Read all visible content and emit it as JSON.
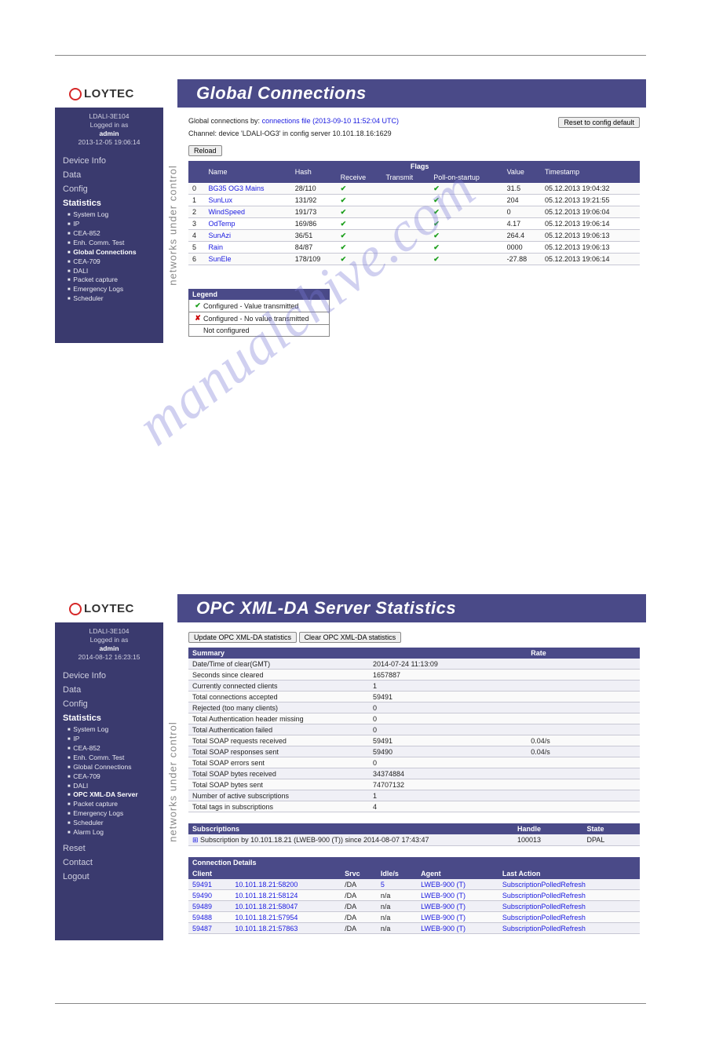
{
  "watermark": "manualchive.com",
  "screen1": {
    "title": "Global Connections",
    "logo_text": "LOYTEC",
    "sidebar": {
      "device": "LDALI-3E104",
      "logged_in_as_label": "Logged in as",
      "user": "admin",
      "datetime": "2013-12-05 19:06:14",
      "nav": [
        {
          "label": "Device Info",
          "active": false
        },
        {
          "label": "Data",
          "active": false
        },
        {
          "label": "Config",
          "active": false
        },
        {
          "label": "Statistics",
          "active": true
        }
      ],
      "subitems": [
        {
          "label": "System Log",
          "active": false
        },
        {
          "label": "IP",
          "active": false
        },
        {
          "label": "CEA-852",
          "active": false
        },
        {
          "label": "Enh. Comm. Test",
          "active": false
        },
        {
          "label": "Global Connections",
          "active": true
        },
        {
          "label": "CEA-709",
          "active": false
        },
        {
          "label": "DALI",
          "active": false
        },
        {
          "label": "Packet capture",
          "active": false
        },
        {
          "label": "Emergency Logs",
          "active": false
        },
        {
          "label": "Scheduler",
          "active": false
        }
      ]
    },
    "vlabel": "networks under control",
    "conn_by_label": "Global connections by:",
    "conn_by_value": "connections file (2013-09-10 11:52:04 UTC)",
    "channel_label": "Channel: device 'LDALI-OG3' in config server 10.101.18.16:1629",
    "reset_button": "Reset to config default",
    "reload_button": "Reload",
    "columns": {
      "idx": "",
      "name": "Name",
      "hash": "Hash",
      "flags_group": "Flags",
      "receive": "Receive",
      "transmit": "Transmit",
      "poll": "Poll-on-startup",
      "value": "Value",
      "timestamp": "Timestamp"
    },
    "rows": [
      {
        "idx": "0",
        "name": "BG35 OG3 Mains",
        "hash": "28/110",
        "rx": true,
        "tx": false,
        "poll": true,
        "value": "31.5",
        "ts": "05.12.2013 19:04:32"
      },
      {
        "idx": "1",
        "name": "SunLux",
        "hash": "131/92",
        "rx": true,
        "tx": false,
        "poll": true,
        "value": "204",
        "ts": "05.12.2013 19:21:55"
      },
      {
        "idx": "2",
        "name": "WindSpeed",
        "hash": "191/73",
        "rx": true,
        "tx": false,
        "poll": true,
        "value": "0",
        "ts": "05.12.2013 19:06:04"
      },
      {
        "idx": "3",
        "name": "OdTemp",
        "hash": "169/86",
        "rx": true,
        "tx": false,
        "poll": true,
        "value": "4.17",
        "ts": "05.12.2013 19:06:14"
      },
      {
        "idx": "4",
        "name": "SunAzi",
        "hash": "36/51",
        "rx": true,
        "tx": false,
        "poll": true,
        "value": "264.4",
        "ts": "05.12.2013 19:06:13"
      },
      {
        "idx": "5",
        "name": "Rain",
        "hash": "84/87",
        "rx": true,
        "tx": false,
        "poll": true,
        "value": "0000",
        "ts": "05.12.2013 19:06:13"
      },
      {
        "idx": "6",
        "name": "SunEle",
        "hash": "178/109",
        "rx": true,
        "tx": false,
        "poll": true,
        "value": "-27.88",
        "ts": "05.12.2013 19:06:14"
      }
    ],
    "legend": {
      "title": "Legend",
      "r1": "Configured - Value transmitted",
      "r2": "Configured - No value transmitted",
      "r3": "Not configured"
    }
  },
  "screen2": {
    "title": "OPC XML-DA Server Statistics",
    "logo_text": "LOYTEC",
    "sidebar": {
      "device": "LDALI-3E104",
      "logged_in_as_label": "Logged in as",
      "user": "admin",
      "datetime": "2014-08-12 16:23:15",
      "nav": [
        {
          "label": "Device Info",
          "active": false
        },
        {
          "label": "Data",
          "active": false
        },
        {
          "label": "Config",
          "active": false
        },
        {
          "label": "Statistics",
          "active": true
        }
      ],
      "subitems": [
        {
          "label": "System Log",
          "active": false
        },
        {
          "label": "IP",
          "active": false
        },
        {
          "label": "CEA-852",
          "active": false
        },
        {
          "label": "Enh. Comm. Test",
          "active": false
        },
        {
          "label": "Global Connections",
          "active": false
        },
        {
          "label": "CEA-709",
          "active": false
        },
        {
          "label": "DALI",
          "active": false
        },
        {
          "label": "OPC XML-DA Server",
          "active": true
        },
        {
          "label": "Packet capture",
          "active": false
        },
        {
          "label": "Emergency Logs",
          "active": false
        },
        {
          "label": "Scheduler",
          "active": false
        },
        {
          "label": "Alarm Log",
          "active": false
        }
      ],
      "nav2": [
        "Reset",
        "Contact",
        "Logout"
      ]
    },
    "vlabel": "networks under control",
    "update_button": "Update OPC XML-DA statistics",
    "clear_button": "Clear OPC XML-DA statistics",
    "summary_hdr": "Summary",
    "rate_hdr": "Rate",
    "summary": [
      {
        "k": "Date/Time of clear(GMT)",
        "v": "2014-07-24 11:13:09",
        "r": ""
      },
      {
        "k": "Seconds since cleared",
        "v": "1657887",
        "r": ""
      },
      {
        "k": "Currently connected clients",
        "v": "1",
        "r": ""
      },
      {
        "k": "Total connections accepted",
        "v": "59491",
        "r": ""
      },
      {
        "k": "Rejected (too many clients)",
        "v": "0",
        "r": ""
      },
      {
        "k": "Total Authentication header missing",
        "v": "0",
        "r": ""
      },
      {
        "k": "Total Authentication failed",
        "v": "0",
        "r": ""
      },
      {
        "k": "Total SOAP requests received",
        "v": "59491",
        "r": "0.04/s"
      },
      {
        "k": "Total SOAP responses sent",
        "v": "59490",
        "r": "0.04/s"
      },
      {
        "k": "Total SOAP errors sent",
        "v": "0",
        "r": ""
      },
      {
        "k": "Total SOAP bytes received",
        "v": "34374884",
        "r": ""
      },
      {
        "k": "Total SOAP bytes sent",
        "v": "74707132",
        "r": ""
      },
      {
        "k": "Number of active subscriptions",
        "v": "1",
        "r": ""
      },
      {
        "k": "Total tags in subscriptions",
        "v": "4",
        "r": ""
      }
    ],
    "subs_hdr": "Subscriptions",
    "subs_handle_hdr": "Handle",
    "subs_state_hdr": "State",
    "subs": [
      {
        "label": "Subscription by 10.101.18.21 (LWEB-900 (T)) since 2014-08-07 17:43:47",
        "handle": "100013",
        "state": "DPAL"
      }
    ],
    "conn_hdr": "Connection Details",
    "conn_cols": {
      "client": "Client",
      "srvc": "Srvc",
      "idle": "Idle/s",
      "agent": "Agent",
      "last": "Last Action"
    },
    "conns": [
      {
        "id": "59491",
        "ip": "10.101.18.21:58200",
        "srvc": "/DA",
        "idle": "5",
        "agent": "LWEB-900 (T)",
        "last": "SubscriptionPolledRefresh"
      },
      {
        "id": "59490",
        "ip": "10.101.18.21:58124",
        "srvc": "/DA",
        "idle": "n/a",
        "agent": "LWEB-900 (T)",
        "last": "SubscriptionPolledRefresh"
      },
      {
        "id": "59489",
        "ip": "10.101.18.21:58047",
        "srvc": "/DA",
        "idle": "n/a",
        "agent": "LWEB-900 (T)",
        "last": "SubscriptionPolledRefresh"
      },
      {
        "id": "59488",
        "ip": "10.101.18.21:57954",
        "srvc": "/DA",
        "idle": "n/a",
        "agent": "LWEB-900 (T)",
        "last": "SubscriptionPolledRefresh"
      },
      {
        "id": "59487",
        "ip": "10.101.18.21:57863",
        "srvc": "/DA",
        "idle": "n/a",
        "agent": "LWEB-900 (T)",
        "last": "SubscriptionPolledRefresh"
      }
    ]
  }
}
